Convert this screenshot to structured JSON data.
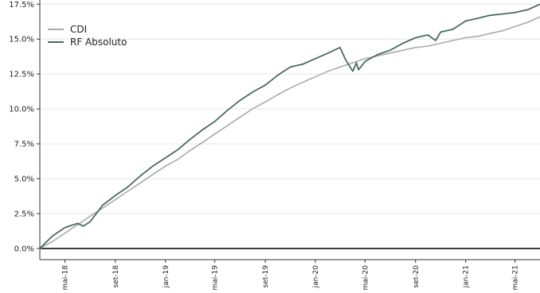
{
  "chart_data": {
    "type": "line",
    "title": "",
    "xlabel": "",
    "ylabel": "",
    "legend_position": "top-left",
    "grid": "horizontal",
    "ylim": [
      -0.008,
      0.178
    ],
    "xlim": [
      "2018-03-01",
      "2021-07-01"
    ],
    "y_ticks": [
      {
        "value": 0.0,
        "label": "0.0%"
      },
      {
        "value": 0.025,
        "label": "2.5%"
      },
      {
        "value": 0.05,
        "label": "5.0%"
      },
      {
        "value": 0.075,
        "label": "7.5%"
      },
      {
        "value": 0.1,
        "label": "10.0%"
      },
      {
        "value": 0.125,
        "label": "12.5%"
      },
      {
        "value": 0.15,
        "label": "15.0%"
      },
      {
        "value": 0.175,
        "label": "17.5%"
      }
    ],
    "x_ticks": [
      {
        "date": "2018-05-01",
        "label": "mai-18"
      },
      {
        "date": "2018-09-01",
        "label": "set-18"
      },
      {
        "date": "2019-01-01",
        "label": "jan-19"
      },
      {
        "date": "2019-05-01",
        "label": "mai-19"
      },
      {
        "date": "2019-09-01",
        "label": "set-19"
      },
      {
        "date": "2020-01-01",
        "label": "jan-20"
      },
      {
        "date": "2020-05-01",
        "label": "mai-20"
      },
      {
        "date": "2020-09-01",
        "label": "set-20"
      },
      {
        "date": "2021-01-01",
        "label": "jan-21"
      },
      {
        "date": "2021-05-01",
        "label": "mai-21"
      }
    ],
    "series": [
      {
        "name": "CDI",
        "color": "#aaaaaa",
        "points": [
          [
            "2018-03-01",
            0.0
          ],
          [
            "2018-04-01",
            0.005
          ],
          [
            "2018-05-01",
            0.011
          ],
          [
            "2018-06-01",
            0.017
          ],
          [
            "2018-07-01",
            0.023
          ],
          [
            "2018-08-01",
            0.029
          ],
          [
            "2018-09-01",
            0.035
          ],
          [
            "2018-10-01",
            0.041
          ],
          [
            "2018-11-01",
            0.047
          ],
          [
            "2018-12-01",
            0.053
          ],
          [
            "2019-01-01",
            0.059
          ],
          [
            "2019-02-01",
            0.064
          ],
          [
            "2019-03-01",
            0.07
          ],
          [
            "2019-04-01",
            0.076
          ],
          [
            "2019-05-01",
            0.082
          ],
          [
            "2019-06-01",
            0.088
          ],
          [
            "2019-07-01",
            0.094
          ],
          [
            "2019-08-01",
            0.1
          ],
          [
            "2019-09-01",
            0.105
          ],
          [
            "2019-10-01",
            0.11
          ],
          [
            "2019-11-01",
            0.115
          ],
          [
            "2019-12-01",
            0.119
          ],
          [
            "2020-01-01",
            0.123
          ],
          [
            "2020-02-01",
            0.127
          ],
          [
            "2020-03-01",
            0.13
          ],
          [
            "2020-04-01",
            0.133
          ],
          [
            "2020-05-01",
            0.136
          ],
          [
            "2020-06-01",
            0.138
          ],
          [
            "2020-07-01",
            0.14
          ],
          [
            "2020-08-01",
            0.142
          ],
          [
            "2020-09-01",
            0.144
          ],
          [
            "2020-10-01",
            0.145
          ],
          [
            "2020-11-01",
            0.147
          ],
          [
            "2020-12-01",
            0.149
          ],
          [
            "2021-01-01",
            0.151
          ],
          [
            "2021-02-01",
            0.152
          ],
          [
            "2021-03-01",
            0.154
          ],
          [
            "2021-04-01",
            0.156
          ],
          [
            "2021-05-01",
            0.159
          ],
          [
            "2021-06-01",
            0.162
          ],
          [
            "2021-07-01",
            0.166
          ]
        ]
      },
      {
        "name": "RF Absoluto",
        "color": "#4a6b5d",
        "points": [
          [
            "2018-03-01",
            0.0
          ],
          [
            "2018-04-01",
            0.009
          ],
          [
            "2018-05-01",
            0.015
          ],
          [
            "2018-06-01",
            0.018
          ],
          [
            "2018-06-15",
            0.016
          ],
          [
            "2018-07-01",
            0.019
          ],
          [
            "2018-08-01",
            0.031
          ],
          [
            "2018-09-01",
            0.038
          ],
          [
            "2018-10-01",
            0.044
          ],
          [
            "2018-11-01",
            0.052
          ],
          [
            "2018-12-01",
            0.059
          ],
          [
            "2019-01-01",
            0.065
          ],
          [
            "2019-02-01",
            0.071
          ],
          [
            "2019-03-01",
            0.078
          ],
          [
            "2019-04-01",
            0.085
          ],
          [
            "2019-05-01",
            0.091
          ],
          [
            "2019-06-01",
            0.099
          ],
          [
            "2019-07-01",
            0.106
          ],
          [
            "2019-08-01",
            0.112
          ],
          [
            "2019-09-01",
            0.117
          ],
          [
            "2019-10-01",
            0.124
          ],
          [
            "2019-11-01",
            0.13
          ],
          [
            "2019-12-01",
            0.132
          ],
          [
            "2020-01-01",
            0.136
          ],
          [
            "2020-02-01",
            0.14
          ],
          [
            "2020-03-01",
            0.144
          ],
          [
            "2020-03-15",
            0.135
          ],
          [
            "2020-04-01",
            0.127
          ],
          [
            "2020-04-10",
            0.133
          ],
          [
            "2020-04-15",
            0.128
          ],
          [
            "2020-05-01",
            0.134
          ],
          [
            "2020-06-01",
            0.139
          ],
          [
            "2020-07-01",
            0.142
          ],
          [
            "2020-08-01",
            0.147
          ],
          [
            "2020-09-01",
            0.151
          ],
          [
            "2020-10-01",
            0.153
          ],
          [
            "2020-10-20",
            0.149
          ],
          [
            "2020-11-01",
            0.155
          ],
          [
            "2020-12-01",
            0.157
          ],
          [
            "2021-01-01",
            0.163
          ],
          [
            "2021-02-01",
            0.165
          ],
          [
            "2021-03-01",
            0.167
          ],
          [
            "2021-04-01",
            0.168
          ],
          [
            "2021-05-01",
            0.169
          ],
          [
            "2021-06-01",
            0.171
          ],
          [
            "2021-07-01",
            0.175
          ]
        ]
      }
    ]
  }
}
